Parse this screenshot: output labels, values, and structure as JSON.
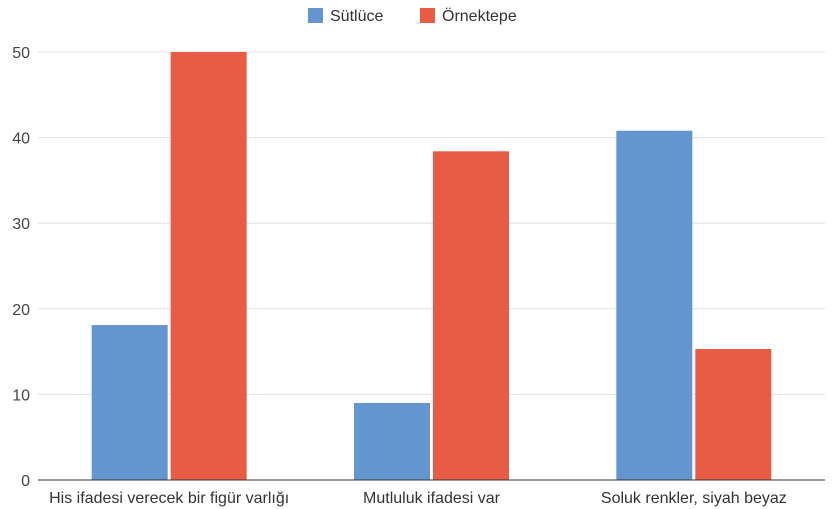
{
  "chart_data": {
    "type": "bar",
    "title": "",
    "xlabel": "",
    "ylabel": "",
    "categories": [
      "His ifadesi verecek bir figür varlığı",
      "Mutluluk ifadesi var",
      "Soluk renkler, siyah beyaz"
    ],
    "series": [
      {
        "name": "Sütlüce",
        "color": "#6495cf",
        "values": [
          18.1,
          9.0,
          40.8
        ]
      },
      {
        "name": "Örnektepe",
        "color": "#e85c45",
        "values": [
          50.0,
          38.4,
          15.3
        ]
      }
    ],
    "ylim": [
      0,
      50
    ],
    "yticks": [
      0,
      10,
      20,
      30,
      40,
      50
    ],
    "grid": true,
    "legend_position": "top"
  }
}
